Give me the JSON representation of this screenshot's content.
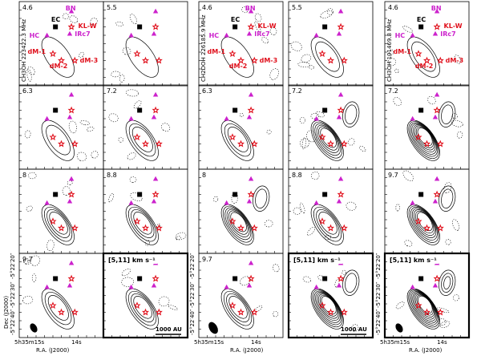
{
  "figure": {
    "molecules": [
      "CH3OH 223422.3 MHz",
      "CH2DOH 226185.9 MHz",
      "CH3OH 101469.8 MHz"
    ],
    "velocities": [
      [
        "4.6",
        "5.5",
        "4.6",
        "5.5",
        "4.6"
      ],
      [
        "6.3",
        "7.2",
        "6.3",
        "7.2",
        "7.2"
      ],
      [
        "8",
        "8.8",
        "8",
        "8.8",
        "9.7"
      ],
      [
        "9.7",
        "[5,11] km s⁻¹",
        "9.7",
        "[5,11] km s⁻¹",
        "[5,11] km s⁻¹"
      ]
    ],
    "source_labels": {
      "bn": "BN",
      "ec": "EC",
      "klw": "KL-W",
      "hc": "HC",
      "irc7": "IRc7",
      "dm1": "dM-1",
      "dm2": "dM-2",
      "dm3": "dM-3"
    },
    "axis": {
      "dec_label": "Dec (J2000)",
      "ra_label": "R.A. (J2000)",
      "dec_ticks": [
        "-5°22′20″",
        "-5°22′30″",
        "-5°22′40″"
      ],
      "ra_ticks": [
        "5h35m15s",
        "14s"
      ]
    },
    "scale_bar": "1000 AU",
    "colors": {
      "star_red": "#e0101c",
      "triangle_magenta": "#cc22cc",
      "square": "#000000"
    }
  }
}
